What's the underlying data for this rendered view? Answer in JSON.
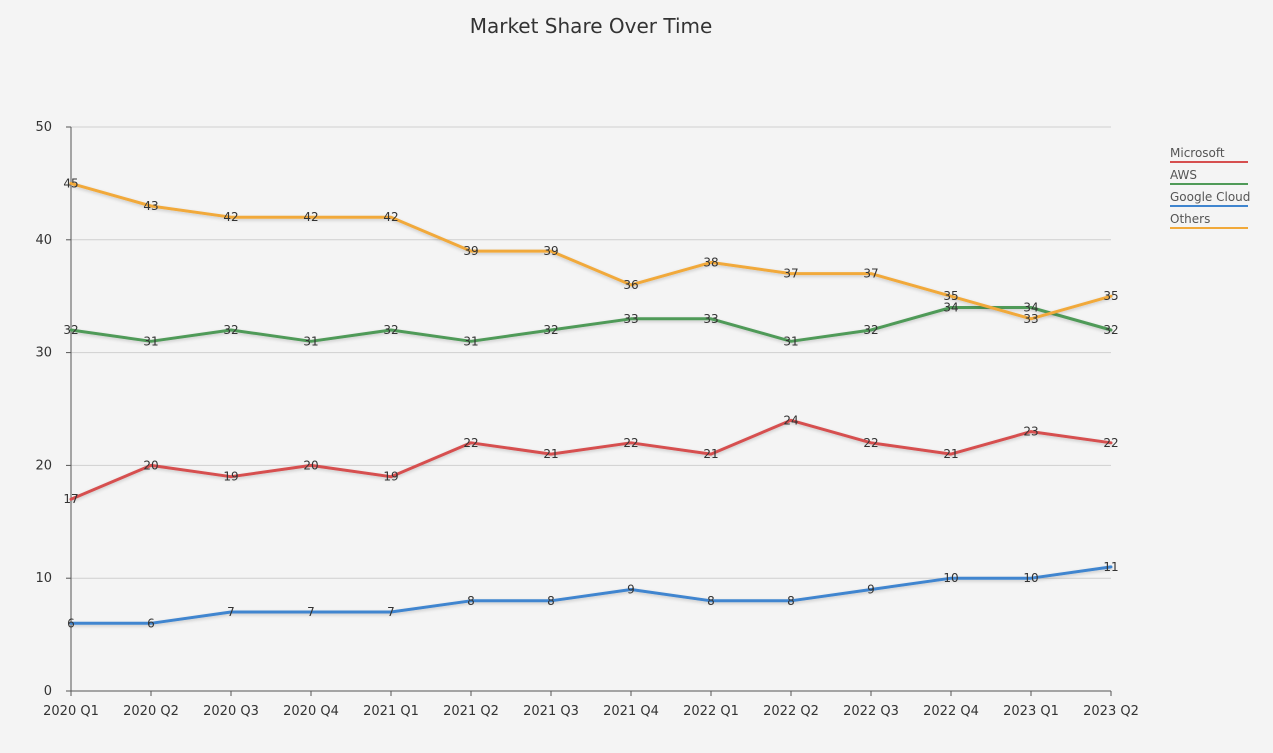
{
  "chart_data": {
    "type": "line",
    "title": "Market Share Over Time",
    "xlabel": "",
    "ylabel": "",
    "categories": [
      "2020 Q1",
      "2020 Q2",
      "2020 Q3",
      "2020 Q4",
      "2021 Q1",
      "2021 Q2",
      "2021 Q3",
      "2021 Q4",
      "2022 Q1",
      "2022 Q2",
      "2022 Q3",
      "2022 Q4",
      "2023 Q1",
      "2023 Q2"
    ],
    "ylim": [
      0,
      50
    ],
    "yticks": [
      0,
      10,
      20,
      30,
      40,
      50
    ],
    "grid": true,
    "legend_position": "right",
    "data_labels": true,
    "series": [
      {
        "name": "Microsoft",
        "color": "#d64f4f",
        "values": [
          17,
          20,
          19,
          20,
          19,
          22,
          21,
          22,
          21,
          24,
          22,
          21,
          23,
          22
        ]
      },
      {
        "name": "AWS",
        "color": "#4f9a58",
        "values": [
          32,
          31,
          32,
          31,
          32,
          31,
          32,
          33,
          33,
          31,
          32,
          34,
          34,
          32
        ]
      },
      {
        "name": "Google Cloud",
        "color": "#3f85cf",
        "values": [
          6,
          6,
          7,
          7,
          7,
          8,
          8,
          9,
          8,
          8,
          9,
          10,
          10,
          11
        ]
      },
      {
        "name": "Others",
        "color": "#f1a93a",
        "values": [
          45,
          43,
          42,
          42,
          42,
          39,
          39,
          36,
          38,
          37,
          37,
          35,
          33,
          35
        ]
      }
    ]
  }
}
